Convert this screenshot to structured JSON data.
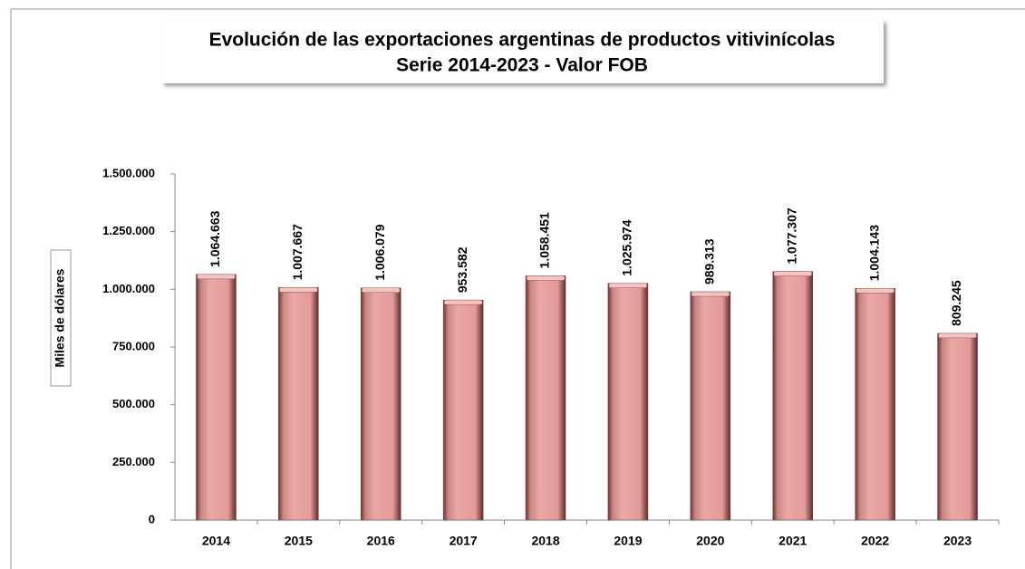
{
  "chart_data": {
    "type": "bar",
    "title": "Evolución de las exportaciones  argentinas de productos vitivinícolas",
    "subtitle": "Serie 2014-2023 - Valor FOB",
    "y_label": "Miles de dólares",
    "categories": [
      "2014",
      "2015",
      "2016",
      "2017",
      "2018",
      "2019",
      "2020",
      "2021",
      "2022",
      "2023"
    ],
    "values": [
      1064663,
      1007667,
      1006079,
      953582,
      1058451,
      1025974,
      989313,
      1077307,
      1004143,
      809245
    ],
    "value_labels": [
      "1.064.663",
      "1.007.667",
      "1.006.079",
      "953.582",
      "1.058.451",
      "1.025.974",
      "989.313",
      "1.077.307",
      "1.004.143",
      "809.245"
    ],
    "color": "#e8a19e",
    "ylim": [
      0,
      1500000
    ],
    "yticks": [
      0,
      {
        "value": 250000,
        "label": "250.000"
      },
      {
        "value": 500000,
        "label": "500.000"
      },
      {
        "value": 750000,
        "label": "750.000"
      },
      {
        "value": 1000000,
        "label": "1.000.000"
      },
      {
        "value": 1250000,
        "label": "1.250.000"
      },
      {
        "value": 1500000,
        "label": "1.500.000"
      }
    ],
    "grid": false
  }
}
